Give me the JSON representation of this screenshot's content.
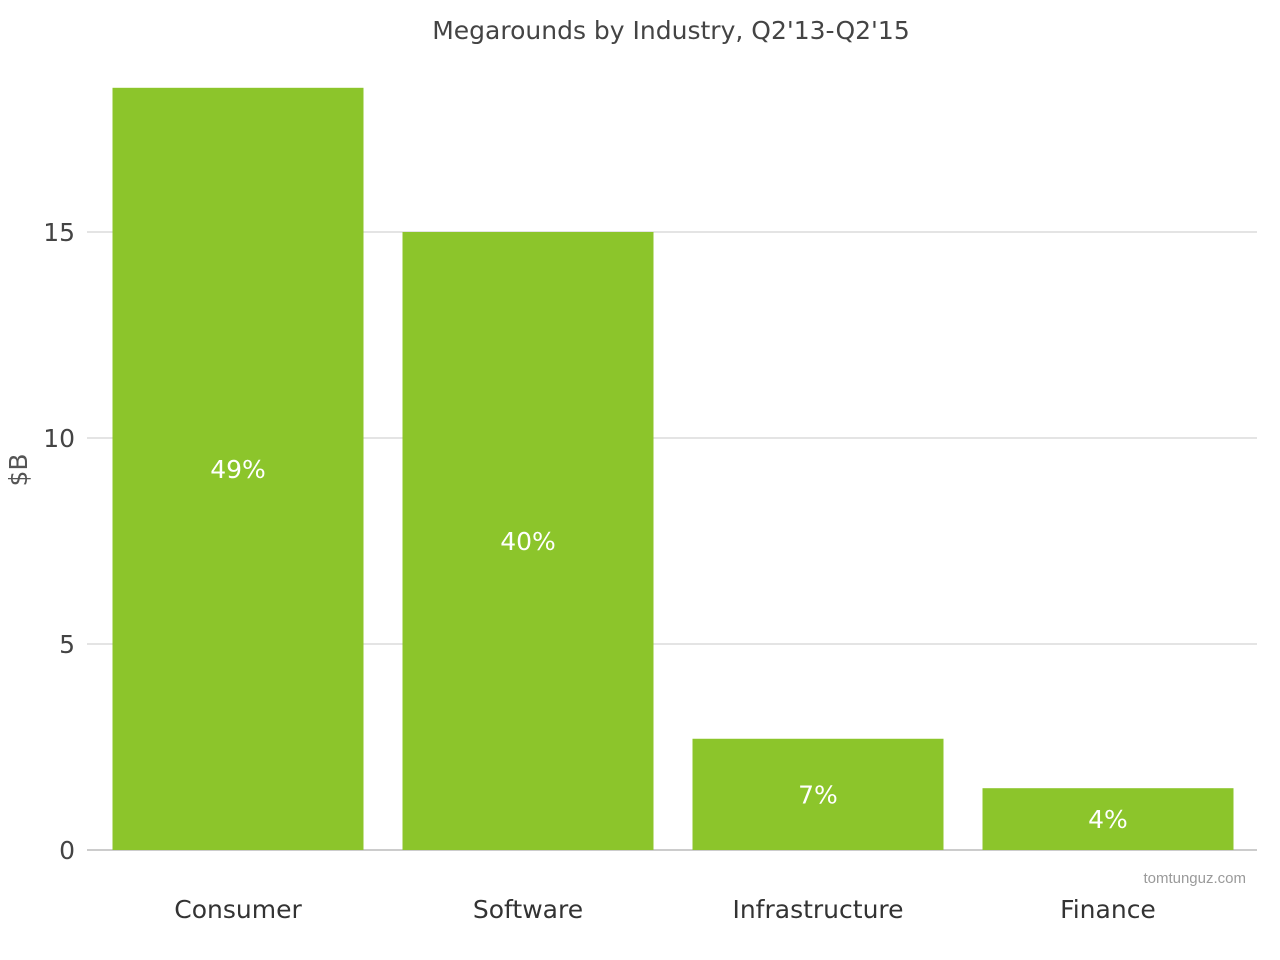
{
  "chart_data": {
    "type": "bar",
    "title": "Megarounds by Industry, Q2'13-Q2'15",
    "xlabel": "",
    "ylabel": "$B",
    "categories": [
      "Consumer",
      "Software",
      "Infrastructure",
      "Finance"
    ],
    "values": [
      18.5,
      15.0,
      2.7,
      1.5
    ],
    "data_labels": [
      "49%",
      "40%",
      "7%",
      "4%"
    ],
    "ylim": [
      0,
      20
    ],
    "yticks": [
      0,
      5,
      10,
      15
    ],
    "grid": true,
    "legend": "none",
    "bar_color": "#8cc52b",
    "grid_color": "#c8c8c8",
    "watermark": "tomtunguz.com"
  }
}
